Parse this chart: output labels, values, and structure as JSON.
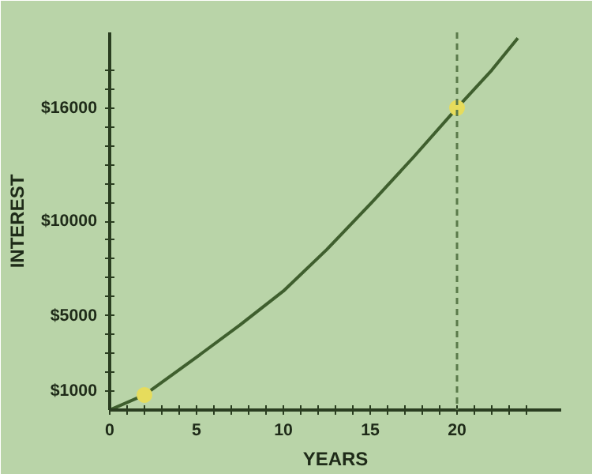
{
  "chart_data": {
    "type": "line",
    "xlabel": "YEARS",
    "ylabel": "INTEREST",
    "x": [
      0,
      2,
      5,
      7.5,
      10,
      12.5,
      15,
      17.5,
      20,
      22,
      23.5
    ],
    "series": [
      {
        "color": "#3f5f2e",
        "values": [
          0,
          800,
          2800,
          4500,
          6300,
          8500,
          10900,
          13400,
          16000,
          18000,
          19700
        ]
      },
      {
        "type": "scatter",
        "marker": "circle",
        "color": "#e6dc5c",
        "x": [
          2,
          20
        ],
        "values": [
          800,
          16000
        ]
      }
    ],
    "xlim": [
      0,
      26
    ],
    "ylim": [
      0,
      20000
    ],
    "xticks": [
      0,
      {
        "value": 1,
        "label": null
      },
      {
        "value": 2,
        "label": null
      },
      {
        "value": 3,
        "label": null
      },
      {
        "value": 4,
        "label": null
      },
      5,
      {
        "value": 6,
        "label": null
      },
      {
        "value": 7,
        "label": null
      },
      {
        "value": 8,
        "label": null
      },
      {
        "value": 9,
        "label": null
      },
      10,
      {
        "value": 11,
        "label": null
      },
      {
        "value": 12,
        "label": null
      },
      {
        "value": 13,
        "label": null
      },
      {
        "value": 14,
        "label": null
      },
      15,
      {
        "value": 16,
        "label": null
      },
      {
        "value": 17,
        "label": null
      },
      {
        "value": 18,
        "label": null
      },
      {
        "value": 19,
        "label": null
      },
      20,
      {
        "value": 21,
        "label": null
      },
      {
        "value": 22,
        "label": null
      },
      {
        "value": 23,
        "label": null
      },
      {
        "value": 24,
        "label": null
      }
    ],
    "yticks": [
      {
        "value": 1000,
        "label": "$1000"
      },
      {
        "value": 2000,
        "label": null
      },
      {
        "value": 3000,
        "label": null
      },
      {
        "value": 4000,
        "label": null
      },
      {
        "value": 5000,
        "label": "$5000"
      },
      {
        "value": 6000,
        "label": null
      },
      {
        "value": 7000,
        "label": null
      },
      {
        "value": 8000,
        "label": null
      },
      {
        "value": 9000,
        "label": null
      },
      {
        "value": 10000,
        "label": "$10000"
      },
      {
        "value": 11000,
        "label": null
      },
      {
        "value": 12000,
        "label": null
      },
      {
        "value": 13000,
        "label": null
      },
      {
        "value": 14000,
        "label": null
      },
      {
        "value": 15000,
        "label": null
      },
      {
        "value": 16000,
        "label": "$16000"
      },
      {
        "value": 17000,
        "label": null
      },
      {
        "value": 18000,
        "label": null
      }
    ],
    "ref_lines": [
      {
        "axis": "x",
        "value": 20,
        "label": null,
        "color": "#5a7a4a",
        "line_style": "dashed"
      }
    ],
    "grid": false
  }
}
